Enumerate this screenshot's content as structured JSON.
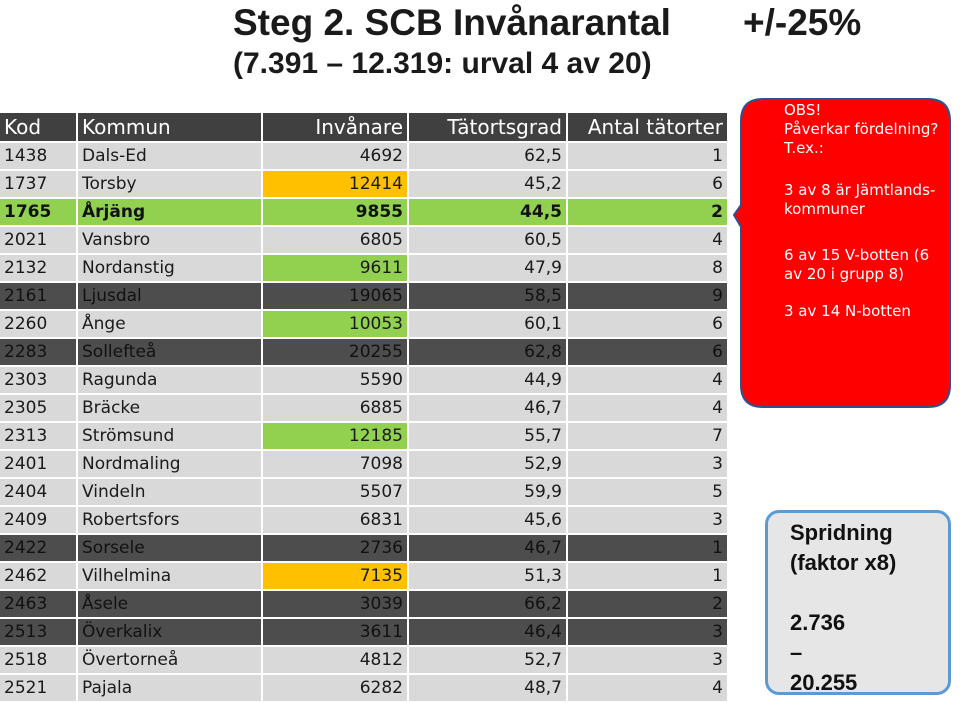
{
  "header": {
    "title": "Steg 2. SCB Invånarantal",
    "title_pct": "+/-25%",
    "subtitle": "(7.391 – 12.319: urval 4 av 20)"
  },
  "table": {
    "columns": [
      "Kod",
      "Kommun",
      "Invånare",
      "Tätortsgrad",
      "Antal tätorter"
    ],
    "rows": [
      {
        "kod": "1438",
        "kommun": "Dals-Ed",
        "invanare": "4692",
        "tatortsgrad": "62,5",
        "antal": "1",
        "style": "light",
        "hl": ""
      },
      {
        "kod": "1737",
        "kommun": "Torsby",
        "invanare": "12414",
        "tatortsgrad": "45,2",
        "antal": "6",
        "style": "light",
        "hl": "orange"
      },
      {
        "kod": "1765",
        "kommun": "Årjäng",
        "invanare": "9855",
        "tatortsgrad": "44,5",
        "antal": "2",
        "style": "green",
        "hl": ""
      },
      {
        "kod": "2021",
        "kommun": "Vansbro",
        "invanare": "6805",
        "tatortsgrad": "60,5",
        "antal": "4",
        "style": "light",
        "hl": ""
      },
      {
        "kod": "2132",
        "kommun": "Nordanstig",
        "invanare": "9611",
        "tatortsgrad": "47,9",
        "antal": "8",
        "style": "light",
        "hl": "green"
      },
      {
        "kod": "2161",
        "kommun": "Ljusdal",
        "invanare": "19065",
        "tatortsgrad": "58,5",
        "antal": "9",
        "style": "dark",
        "hl": ""
      },
      {
        "kod": "2260",
        "kommun": "Ånge",
        "invanare": "10053",
        "tatortsgrad": "60,1",
        "antal": "6",
        "style": "light",
        "hl": "green"
      },
      {
        "kod": "2283",
        "kommun": "Sollefteå",
        "invanare": "20255",
        "tatortsgrad": "62,8",
        "antal": "6",
        "style": "dark",
        "hl": ""
      },
      {
        "kod": "2303",
        "kommun": "Ragunda",
        "invanare": "5590",
        "tatortsgrad": "44,9",
        "antal": "4",
        "style": "light",
        "hl": ""
      },
      {
        "kod": "2305",
        "kommun": "Bräcke",
        "invanare": "6885",
        "tatortsgrad": "46,7",
        "antal": "4",
        "style": "light",
        "hl": ""
      },
      {
        "kod": "2313",
        "kommun": "Strömsund",
        "invanare": "12185",
        "tatortsgrad": "55,7",
        "antal": "7",
        "style": "light",
        "hl": "green"
      },
      {
        "kod": "2401",
        "kommun": "Nordmaling",
        "invanare": "7098",
        "tatortsgrad": "52,9",
        "antal": "3",
        "style": "light",
        "hl": ""
      },
      {
        "kod": "2404",
        "kommun": "Vindeln",
        "invanare": "5507",
        "tatortsgrad": "59,9",
        "antal": "5",
        "style": "light",
        "hl": ""
      },
      {
        "kod": "2409",
        "kommun": "Robertsfors",
        "invanare": "6831",
        "tatortsgrad": "45,6",
        "antal": "3",
        "style": "light",
        "hl": ""
      },
      {
        "kod": "2422",
        "kommun": "Sorsele",
        "invanare": "2736",
        "tatortsgrad": "46,7",
        "antal": "1",
        "style": "dark",
        "hl": ""
      },
      {
        "kod": "2462",
        "kommun": "Vilhelmina",
        "invanare": "7135",
        "tatortsgrad": "51,3",
        "antal": "1",
        "style": "light",
        "hl": "orange"
      },
      {
        "kod": "2463",
        "kommun": "Åsele",
        "invanare": "3039",
        "tatortsgrad": "66,2",
        "antal": "2",
        "style": "dark",
        "hl": ""
      },
      {
        "kod": "2513",
        "kommun": "Överkalix",
        "invanare": "3611",
        "tatortsgrad": "46,4",
        "antal": "3",
        "style": "dark",
        "hl": ""
      },
      {
        "kod": "2518",
        "kommun": "Övertorneå",
        "invanare": "4812",
        "tatortsgrad": "52,7",
        "antal": "3",
        "style": "light",
        "hl": ""
      },
      {
        "kod": "2521",
        "kommun": "Pajala",
        "invanare": "6282",
        "tatortsgrad": "48,7",
        "antal": "4",
        "style": "light",
        "hl": ""
      }
    ]
  },
  "callout": {
    "color": "#ff0000",
    "lines": [
      "OBS!",
      "Påverkar fördelning? T.ex.:",
      "3 av 8 är Jämtlands-kommuner",
      "6 av 15 V-botten (6 av 20 i grupp 8)",
      "3 av 14 N-botten"
    ]
  },
  "spridning": {
    "label": "Spridning (faktor x8)",
    "min": "2.736",
    "dash": "–",
    "max": "20.255"
  }
}
